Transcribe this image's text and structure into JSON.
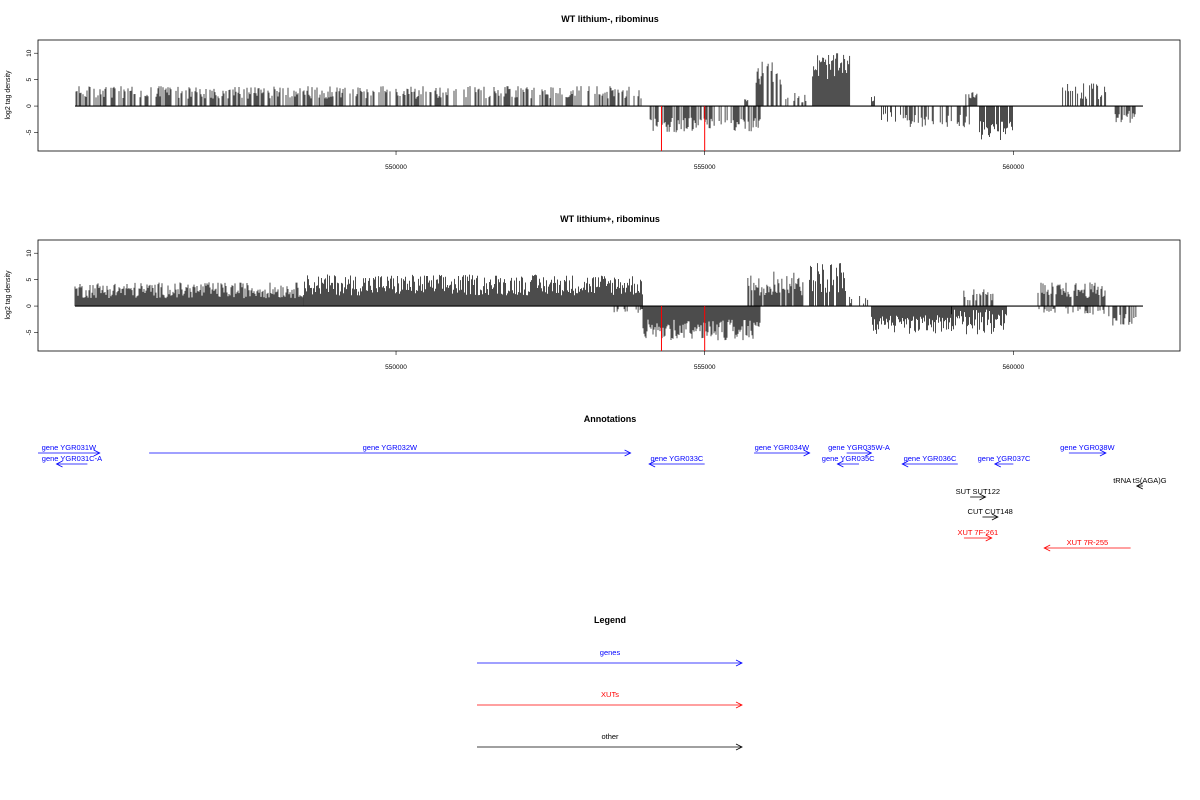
{
  "chart_data": [
    {
      "type": "bar",
      "title": "WT lithium-, ribominus",
      "ylabel": "log2 tag density",
      "xlim": [
        544200,
        562700
      ],
      "ylim": [
        -8.5,
        12.5
      ],
      "x_ticks": [
        550000,
        555000,
        560000
      ],
      "x_tick_labels": [
        "550000",
        "555000",
        "560000"
      ],
      "y_ticks": [
        -5,
        0,
        5,
        10
      ],
      "y_tick_labels": [
        "-5",
        "0",
        "5",
        "10"
      ],
      "segments": [
        {
          "from": 544800,
          "to": 554000,
          "sign": 1,
          "mean": 2.6,
          "amp": 1.2,
          "density": 0.55
        },
        {
          "from": 554100,
          "to": 555900,
          "sign": -1,
          "mean": 3.6,
          "amp": 1.4,
          "density": 0.7
        },
        {
          "from": 555650,
          "to": 555700,
          "sign": 1,
          "mean": 1.2,
          "amp": 0.3,
          "density": 1.0
        },
        {
          "from": 555800,
          "to": 556300,
          "sign": 1,
          "mean": 6.5,
          "amp": 2.5,
          "density": 0.6
        },
        {
          "from": 556300,
          "to": 556700,
          "sign": 1,
          "mean": 1.5,
          "amp": 1,
          "density": 0.4
        },
        {
          "from": 556750,
          "to": 557350,
          "sign": 1,
          "mean": 7.5,
          "amp": 2.5,
          "density": 0.95
        },
        {
          "from": 557700,
          "to": 557800,
          "sign": 1,
          "mean": 1.4,
          "amp": 0.5,
          "density": 0.5
        },
        {
          "from": 557800,
          "to": 558200,
          "sign": -1,
          "mean": 2.0,
          "amp": 1,
          "density": 0.3
        },
        {
          "from": 558200,
          "to": 559300,
          "sign": -1,
          "mean": 2.8,
          "amp": 1.2,
          "density": 0.5
        },
        {
          "from": 559200,
          "to": 559450,
          "sign": 1,
          "mean": 2.2,
          "amp": 0.8,
          "density": 0.7
        },
        {
          "from": 559450,
          "to": 560000,
          "sign": -1,
          "mean": 4.5,
          "amp": 2,
          "density": 0.8
        },
        {
          "from": 560800,
          "to": 561500,
          "sign": 1,
          "mean": 2.8,
          "amp": 1.5,
          "density": 0.6
        },
        {
          "from": 561600,
          "to": 562000,
          "sign": -1,
          "mean": 2.0,
          "amp": 1.2,
          "density": 0.5
        }
      ],
      "red_bars": [
        {
          "x": 554300,
          "y": -8.5
        },
        {
          "x": 555000,
          "y": -8.5
        }
      ]
    },
    {
      "type": "bar",
      "title": "WT lithium+, ribominus",
      "ylabel": "log2 tag density",
      "xlim": [
        544200,
        562700
      ],
      "ylim": [
        -8.5,
        12.5
      ],
      "x_ticks": [
        550000,
        555000,
        560000
      ],
      "x_tick_labels": [
        "550000",
        "555000",
        "560000"
      ],
      "y_ticks": [
        -5,
        0,
        5,
        10
      ],
      "y_tick_labels": [
        "-5",
        "0",
        "5",
        "10"
      ],
      "segments": [
        {
          "from": 544800,
          "to": 548500,
          "sign": 1,
          "mean": 3.0,
          "amp": 1.5,
          "density": 1.0
        },
        {
          "from": 548500,
          "to": 554000,
          "sign": 1,
          "mean": 4.0,
          "amp": 2,
          "density": 1.0
        },
        {
          "from": 553500,
          "to": 554000,
          "sign": -1,
          "mean": 1.0,
          "amp": 0.6,
          "density": 0.3
        },
        {
          "from": 554000,
          "to": 555900,
          "sign": -1,
          "mean": 4.5,
          "amp": 2,
          "density": 1.0
        },
        {
          "from": 555700,
          "to": 556600,
          "sign": 1,
          "mean": 4.5,
          "amp": 2.5,
          "density": 0.9
        },
        {
          "from": 556700,
          "to": 557300,
          "sign": 1,
          "mean": 5.5,
          "amp": 3,
          "density": 0.8
        },
        {
          "from": 557300,
          "to": 557700,
          "sign": 1,
          "mean": 1.2,
          "amp": 0.8,
          "density": 0.3
        },
        {
          "from": 557700,
          "to": 559000,
          "sign": -1,
          "mean": 3.5,
          "amp": 1.8,
          "density": 1.0
        },
        {
          "from": 559000,
          "to": 559900,
          "sign": -1,
          "mean": 3.0,
          "amp": 2.5,
          "density": 1.0
        },
        {
          "from": 559200,
          "to": 559700,
          "sign": 1,
          "mean": 2.2,
          "amp": 1.2,
          "density": 0.6
        },
        {
          "from": 560400,
          "to": 561500,
          "sign": 1,
          "mean": 3.0,
          "amp": 1.5,
          "density": 0.9
        },
        {
          "from": 560400,
          "to": 561500,
          "sign": -1,
          "mean": 1.0,
          "amp": 0.6,
          "density": 0.3
        },
        {
          "from": 561500,
          "to": 562000,
          "sign": -1,
          "mean": 2.5,
          "amp": 1.5,
          "density": 0.6
        }
      ],
      "red_bars": [
        {
          "x": 554300,
          "y": -8.5
        },
        {
          "x": 555000,
          "y": -8.5
        }
      ]
    }
  ],
  "annotations": {
    "title": "Annotations",
    "xlim": [
      544200,
      562700
    ],
    "features": [
      {
        "label": "gene YGR031W",
        "from": 544200,
        "to": 545200,
        "strand": "+",
        "row": 0,
        "color": "#0000ff"
      },
      {
        "label": "gene YGR031C-A",
        "from": 544500,
        "to": 545000,
        "strand": "-",
        "row": 1,
        "color": "#0000ff"
      },
      {
        "label": "gene YGR032W",
        "from": 546000,
        "to": 553800,
        "strand": "+",
        "row": 0,
        "color": "#0000ff"
      },
      {
        "label": "gene YGR033C",
        "from": 554100,
        "to": 555000,
        "strand": "-",
        "row": 1,
        "color": "#0000ff"
      },
      {
        "label": "gene YGR034W",
        "from": 555800,
        "to": 556700,
        "strand": "+",
        "row": 0,
        "color": "#0000ff"
      },
      {
        "label": "gene YGR035W-A",
        "from": 557300,
        "to": 557700,
        "strand": "+",
        "row": 0,
        "color": "#0000ff"
      },
      {
        "label": "gene YGR035C",
        "from": 557150,
        "to": 557500,
        "strand": "-",
        "row": 1,
        "color": "#0000ff"
      },
      {
        "label": "gene YGR036C",
        "from": 558200,
        "to": 559100,
        "strand": "-",
        "row": 1,
        "color": "#0000ff"
      },
      {
        "label": "gene YGR037C",
        "from": 559700,
        "to": 560000,
        "strand": "-",
        "row": 1,
        "color": "#0000ff"
      },
      {
        "label": "gene YGR038W",
        "from": 560900,
        "to": 561500,
        "strand": "+",
        "row": 0,
        "color": "#0000ff"
      },
      {
        "label": "tRNA tS(AGA)G",
        "from": 562000,
        "to": 562100,
        "strand": "-",
        "row": 3,
        "color": "#000000"
      },
      {
        "label": "SUT SUT122",
        "from": 559300,
        "to": 559550,
        "strand": "+",
        "row": 4,
        "color": "#000000"
      },
      {
        "label": "CUT CUT148",
        "from": 559500,
        "to": 559750,
        "strand": "+",
        "row": 5,
        "color": "#000000"
      },
      {
        "label": "XUT 7F-261",
        "from": 559200,
        "to": 559650,
        "strand": "+",
        "row": 6,
        "color": "#ff0000"
      },
      {
        "label": "XUT 7R-255",
        "from": 560500,
        "to": 561900,
        "strand": "-",
        "row": 7,
        "color": "#ff0000"
      }
    ]
  },
  "legend": {
    "title": "Legend",
    "items": [
      {
        "label": "genes",
        "color": "#0000ff"
      },
      {
        "label": "XUTs",
        "color": "#ff0000"
      },
      {
        "label": "other",
        "color": "#000000"
      }
    ]
  }
}
